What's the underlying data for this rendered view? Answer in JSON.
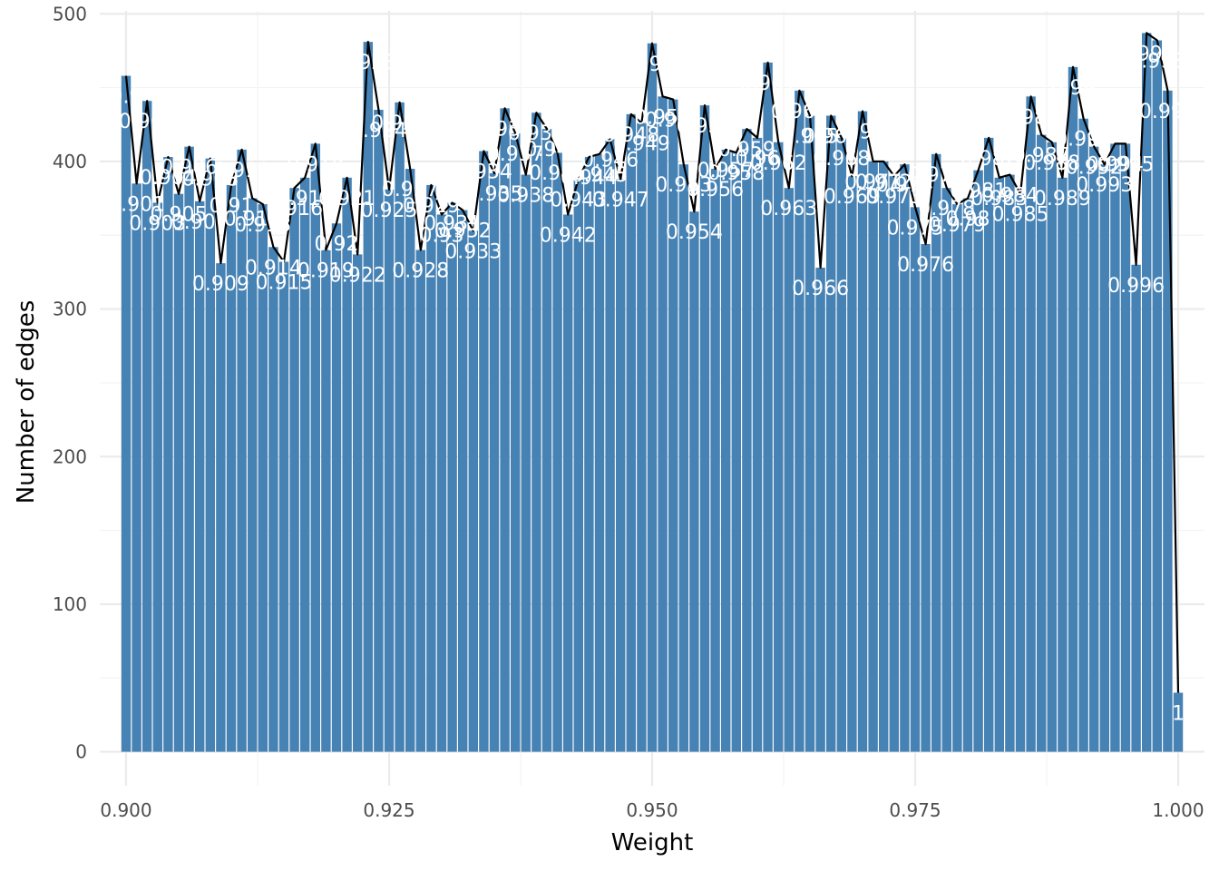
{
  "chart_data": {
    "type": "bar",
    "overlay": "line",
    "title": "",
    "xlabel": "Weight",
    "ylabel": "Number of edges",
    "xlim": [
      0.8975,
      1.0025
    ],
    "ylim": [
      -23,
      502
    ],
    "x_ticks": [
      "0.900",
      "0.925",
      "0.950",
      "0.975",
      "1.000"
    ],
    "x_tick_values": [
      0.9,
      0.925,
      0.95,
      0.975,
      1.0
    ],
    "y_ticks": [
      "0",
      "100",
      "200",
      "300",
      "400",
      "500"
    ],
    "y_tick_values": [
      0,
      100,
      200,
      300,
      400,
      500
    ],
    "grid": true,
    "colors": {
      "bar": "#4682B4",
      "line": "#000000",
      "bar_label": "#ffffff",
      "grid": "#ebebeb"
    },
    "x": [
      0.9,
      0.901,
      0.902,
      0.903,
      0.904,
      0.905,
      0.906,
      0.907,
      0.908,
      0.909,
      0.91,
      0.911,
      0.912,
      0.913,
      0.914,
      0.915,
      0.916,
      0.917,
      0.918,
      0.919,
      0.92,
      0.921,
      0.922,
      0.923,
      0.924,
      0.925,
      0.926,
      0.927,
      0.928,
      0.929,
      0.93,
      0.931,
      0.932,
      0.933,
      0.934,
      0.935,
      0.936,
      0.937,
      0.938,
      0.939,
      0.94,
      0.941,
      0.942,
      0.943,
      0.944,
      0.945,
      0.946,
      0.947,
      0.948,
      0.949,
      0.95,
      0.951,
      0.952,
      0.953,
      0.954,
      0.955,
      0.956,
      0.957,
      0.958,
      0.959,
      0.96,
      0.961,
      0.962,
      0.963,
      0.964,
      0.965,
      0.966,
      0.967,
      0.968,
      0.969,
      0.97,
      0.971,
      0.972,
      0.973,
      0.974,
      0.975,
      0.976,
      0.977,
      0.978,
      0.979,
      0.98,
      0.981,
      0.982,
      0.983,
      0.984,
      0.985,
      0.986,
      0.987,
      0.988,
      0.989,
      0.99,
      0.991,
      0.992,
      0.993,
      0.994,
      0.995,
      0.996,
      0.997,
      0.998,
      0.999,
      1.0
    ],
    "values": [
      458,
      385,
      441,
      372,
      403,
      378,
      410,
      373,
      402,
      331,
      384,
      408,
      375,
      371,
      342,
      332,
      382,
      389,
      412,
      340,
      358,
      389,
      337,
      481,
      435,
      381,
      440,
      395,
      340,
      384,
      364,
      372,
      367,
      353,
      407,
      392,
      436,
      419,
      391,
      433,
      422,
      406,
      364,
      388,
      403,
      405,
      415,
      388,
      432,
      426,
      480,
      444,
      442,
      398,
      366,
      438,
      395,
      408,
      406,
      422,
      416,
      467,
      413,
      382,
      448,
      431,
      328,
      431,
      416,
      390,
      434,
      400,
      400,
      390,
      398,
      369,
      344,
      405,
      382,
      371,
      375,
      394,
      416,
      389,
      391,
      378,
      444,
      418,
      413,
      389,
      464,
      429,
      410,
      398,
      412,
      412,
      330,
      487,
      482,
      448,
      40
    ],
    "labels": [
      "0.9",
      "0.901",
      "0.902",
      "0.903",
      "0.904",
      "0.905",
      "0.906",
      "0.907",
      "0.908",
      "0.909",
      "0.91",
      "0.911",
      "0.912",
      "0.913",
      "0.914",
      "0.915",
      "0.916",
      "0.917",
      "0.918",
      "0.919",
      "0.92",
      "0.921",
      "0.922",
      "0.923",
      "0.924",
      "0.925",
      "0.926",
      "0.927",
      "0.928",
      "0.929",
      "0.93",
      "0.931",
      "0.932",
      "0.933",
      "0.934",
      "0.935",
      "0.936",
      "0.937",
      "0.938",
      "0.939",
      "0.94",
      "0.941",
      "0.942",
      "0.943",
      "0.944",
      "0.945",
      "0.946",
      "0.947",
      "0.948",
      "0.949",
      "0.95",
      "0.951",
      "0.952",
      "0.953",
      "0.954",
      "0.955",
      "0.956",
      "0.957",
      "0.958",
      "0.959",
      "0.96",
      "0.961",
      "0.962",
      "0.963",
      "0.964",
      "0.965",
      "0.966",
      "0.967",
      "0.968",
      "0.969",
      "0.97",
      "0.971",
      "0.972",
      "0.973",
      "0.974",
      "0.975",
      "0.976",
      "0.977",
      "0.978",
      "0.979",
      "0.98",
      "0.981",
      "0.982",
      "0.983",
      "0.984",
      "0.985",
      "0.986",
      "0.987",
      "0.988",
      "0.989",
      "0.99",
      "0.991",
      "0.992",
      "0.993",
      "0.994",
      "0.995",
      "0.996",
      "0.997",
      "0.998",
      "0.999",
      "1"
    ]
  }
}
